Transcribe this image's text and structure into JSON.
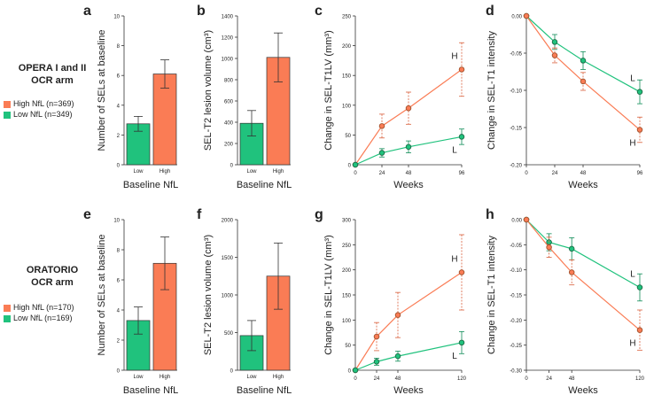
{
  "colors": {
    "high": "#FA7C55",
    "low": "#20C27D",
    "high_dark": "#d9603c",
    "low_dark": "#0f8c57",
    "marker_high": "#a0522d",
    "marker_low": "#1b6b45"
  },
  "rows": [
    {
      "title_line1": "OPERA I and II",
      "title_line2": "OCR arm",
      "legend_high": "High NfL (n=369)",
      "legend_low": "Low NfL (n=349)"
    },
    {
      "title_line1": "ORATORIO",
      "title_line2": "OCR arm",
      "legend_high": "High NfL (n=170)",
      "legend_low": "Low NfL (n=169)"
    }
  ],
  "chart_data": [
    {
      "panel": "a",
      "type": "bar",
      "categories": [
        "Low",
        "High"
      ],
      "values": [
        2.75,
        6.1
      ],
      "errors": [
        0.5,
        0.95
      ],
      "ylabel": "Number of SELs at baseline",
      "xlabel": "Baseline NfL",
      "ylim": [
        0,
        10
      ],
      "yticks": [
        0,
        2,
        4,
        6,
        8,
        10
      ]
    },
    {
      "panel": "b",
      "type": "bar",
      "categories": [
        "Low",
        "High"
      ],
      "values": [
        390,
        1010
      ],
      "errors": [
        120,
        230
      ],
      "ylabel": "SEL-T2 lesion volume (cm³)",
      "xlabel": "Baseline NfL",
      "ylim": [
        0,
        1400
      ],
      "yticks": [
        0,
        200,
        400,
        600,
        800,
        1000,
        1200,
        1400
      ]
    },
    {
      "panel": "c",
      "type": "line",
      "x": [
        0,
        24,
        48,
        96
      ],
      "xticks": [
        0,
        24,
        48,
        96
      ],
      "xlim": [
        0,
        96
      ],
      "series": [
        {
          "name": "H",
          "values": [
            0,
            65,
            95,
            160
          ],
          "errors": [
            0,
            20,
            27,
            45
          ]
        },
        {
          "name": "L",
          "values": [
            0,
            20,
            30,
            47
          ],
          "errors": [
            0,
            7,
            10,
            13
          ]
        }
      ],
      "ylabel": "Change in SEL-T1LV (mm³)",
      "xlabel": "Weeks",
      "ylim": [
        0,
        250
      ],
      "yticks": [
        0,
        50,
        100,
        150,
        200,
        250
      ]
    },
    {
      "panel": "d",
      "type": "line",
      "x": [
        0,
        24,
        48,
        96
      ],
      "xticks": [
        0,
        24,
        48,
        96
      ],
      "xlim": [
        0,
        96
      ],
      "series": [
        {
          "name": "L",
          "values": [
            0,
            -0.035,
            -0.06,
            -0.102
          ],
          "errors": [
            0,
            0.01,
            0.012,
            0.016
          ]
        },
        {
          "name": "H",
          "values": [
            0,
            -0.053,
            -0.088,
            -0.153
          ],
          "errors": [
            0,
            0.01,
            0.012,
            0.017
          ]
        }
      ],
      "ylabel": "Change in SEL-T1 intensity",
      "xlabel": "Weeks",
      "ylim": [
        -0.2,
        0
      ],
      "yticks": [
        0,
        -0.05,
        -0.1,
        -0.15,
        -0.2
      ],
      "ytick_labels": [
        "0.00",
        "-0.05",
        "-0.10",
        "-0.15",
        "-0.20"
      ]
    },
    {
      "panel": "e",
      "type": "bar",
      "categories": [
        "Low",
        "High"
      ],
      "values": [
        3.3,
        7.1
      ],
      "errors": [
        0.9,
        1.75
      ],
      "ylabel": "Number of SELs at baseline",
      "xlabel": "Baseline NfL",
      "ylim": [
        0,
        10
      ],
      "yticks": [
        0,
        2,
        4,
        6,
        8,
        10
      ]
    },
    {
      "panel": "f",
      "type": "bar",
      "categories": [
        "Low",
        "High"
      ],
      "values": [
        460,
        1250
      ],
      "errors": [
        200,
        440
      ],
      "ylabel": "SEL-T2 lesion volume (cm³)",
      "xlabel": "Baseline NfL",
      "ylim": [
        0,
        2000
      ],
      "yticks": [
        0,
        500,
        1000,
        1500,
        2000
      ]
    },
    {
      "panel": "g",
      "type": "line",
      "x": [
        0,
        24,
        48,
        120
      ],
      "xticks": [
        0,
        24,
        48,
        120
      ],
      "xlim": [
        0,
        120
      ],
      "series": [
        {
          "name": "H",
          "values": [
            0,
            67,
            110,
            195
          ],
          "errors": [
            0,
            28,
            45,
            75
          ]
        },
        {
          "name": "L",
          "values": [
            0,
            17,
            28,
            55
          ],
          "errors": [
            0,
            7,
            10,
            22
          ]
        }
      ],
      "ylabel": "Change in SEL-T1LV (mm³)",
      "xlabel": "Weeks",
      "ylim": [
        0,
        300
      ],
      "yticks": [
        0,
        50,
        100,
        150,
        200,
        250,
        300
      ]
    },
    {
      "panel": "h",
      "type": "line",
      "x": [
        0,
        24,
        48,
        120
      ],
      "xticks": [
        0,
        24,
        48,
        120
      ],
      "xlim": [
        0,
        120
      ],
      "series": [
        {
          "name": "L",
          "values": [
            0,
            -0.045,
            -0.058,
            -0.135
          ],
          "errors": [
            0,
            0.017,
            0.022,
            0.027
          ]
        },
        {
          "name": "H",
          "values": [
            0,
            -0.055,
            -0.105,
            -0.22
          ],
          "errors": [
            0,
            0.02,
            0.025,
            0.04
          ]
        }
      ],
      "ylabel": "Change in SEL-T1 intensity",
      "xlabel": "Weeks",
      "ylim": [
        -0.3,
        0
      ],
      "yticks": [
        0,
        -0.05,
        -0.1,
        -0.15,
        -0.2,
        -0.25,
        -0.3
      ],
      "ytick_labels": [
        "0.00",
        "-0.05",
        "-0.10",
        "-0.15",
        "-0.20",
        "-0.25",
        "-0.30"
      ]
    }
  ]
}
